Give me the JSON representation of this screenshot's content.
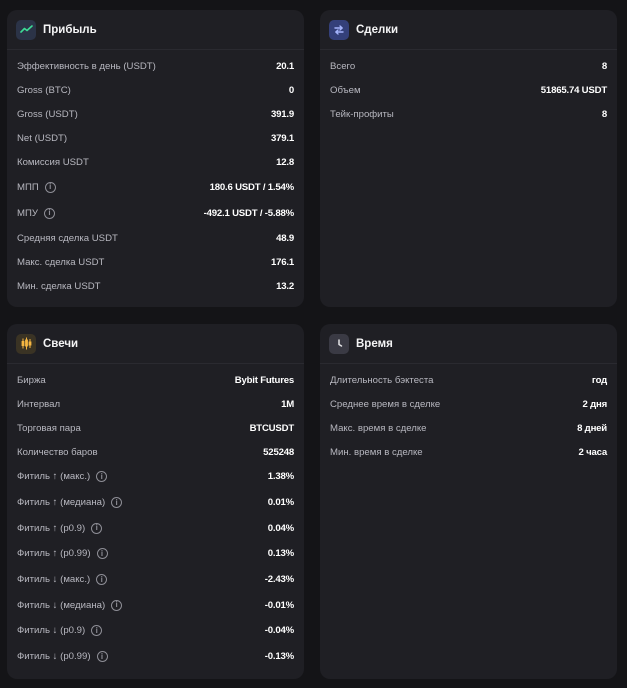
{
  "profit": {
    "title": "Прибыль",
    "icon": "trend-line-icon",
    "rows": [
      {
        "label": "Эффективность в день (USDT)",
        "value": "20.1",
        "info": false
      },
      {
        "label": "Gross (BTC)",
        "value": "0",
        "info": false
      },
      {
        "label": "Gross (USDT)",
        "value": "391.9",
        "info": false
      },
      {
        "label": "Net (USDT)",
        "value": "379.1",
        "info": false
      },
      {
        "label": "Комиссия USDT",
        "value": "12.8",
        "info": false
      },
      {
        "label": "МПП",
        "value": "180.6 USDT / 1.54%",
        "info": true
      },
      {
        "label": "МПУ",
        "value": "-492.1 USDT / -5.88%",
        "info": true
      },
      {
        "label": "Средняя сделка USDT",
        "value": "48.9",
        "info": false
      },
      {
        "label": "Макс. сделка USDT",
        "value": "176.1",
        "info": false
      },
      {
        "label": "Мин. сделка USDT",
        "value": "13.2",
        "info": false
      }
    ]
  },
  "trades": {
    "title": "Сделки",
    "icon": "swap-arrows-icon",
    "rows": [
      {
        "label": "Всего",
        "value": "8"
      },
      {
        "label": "Объем",
        "value": "51865.74 USDT"
      },
      {
        "label": "Тейк-профиты",
        "value": "8"
      }
    ]
  },
  "candles": {
    "title": "Свечи",
    "icon": "candlestick-icon",
    "rows": [
      {
        "label": "Биржа",
        "value": "Bybit Futures",
        "info": false
      },
      {
        "label": "Интервал",
        "value": "1M",
        "info": false
      },
      {
        "label": "Торговая пара",
        "value": "BTCUSDT",
        "info": false
      },
      {
        "label": "Количество баров",
        "value": "525248",
        "info": false
      },
      {
        "label": "Фитиль ↑ (макс.)",
        "value": "1.38%",
        "info": true
      },
      {
        "label": "Фитиль ↑ (медиана)",
        "value": "0.01%",
        "info": true
      },
      {
        "label": "Фитиль ↑ (p0.9)",
        "value": "0.04%",
        "info": true
      },
      {
        "label": "Фитиль ↑ (p0.99)",
        "value": "0.13%",
        "info": true
      },
      {
        "label": "Фитиль ↓ (макс.)",
        "value": "-2.43%",
        "info": true
      },
      {
        "label": "Фитиль ↓ (медиана)",
        "value": "-0.01%",
        "info": true
      },
      {
        "label": "Фитиль ↓ (p0.9)",
        "value": "-0.04%",
        "info": true
      },
      {
        "label": "Фитиль ↓ (p0.99)",
        "value": "-0.13%",
        "info": true
      }
    ]
  },
  "time": {
    "title": "Время",
    "icon": "clock-icon",
    "rows": [
      {
        "label": "Длительность бэктеста",
        "value": "год"
      },
      {
        "label": "Среднее время в сделке",
        "value": "2 дня"
      },
      {
        "label": "Макс. время в сделке",
        "value": "8 дней"
      },
      {
        "label": "Мин. время в сделке",
        "value": "2 часа"
      }
    ]
  },
  "colors": {
    "background": "#141417",
    "card": "#1f1f24",
    "icon_bg": "#2e3b57",
    "trend_accent": "#3ddc97",
    "candle_accent": "#f5b642"
  },
  "info_glyph": "i"
}
